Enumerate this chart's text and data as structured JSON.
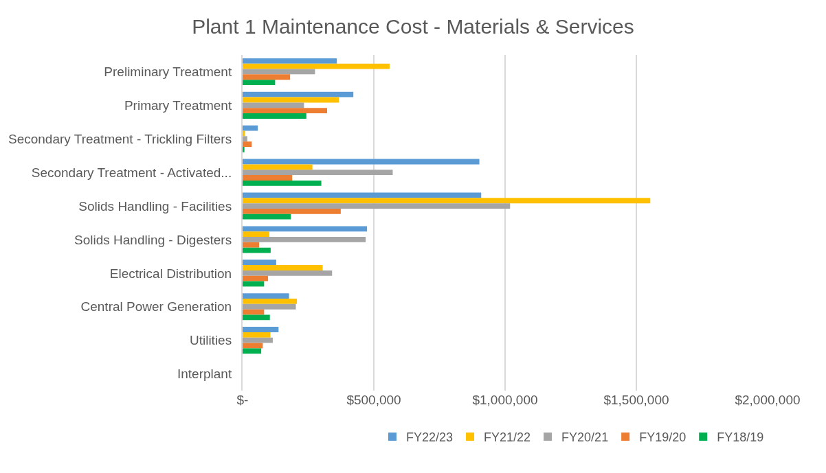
{
  "chart_data": {
    "type": "bar",
    "orientation": "horizontal",
    "title": "Plant 1 Maintenance Cost - Materials & Services",
    "categories": [
      "Preliminary Treatment",
      "Primary Treatment",
      "Secondary Treatment - Trickling Filters",
      "Secondary Treatment - Activated...",
      "Solids Handling - Facilities",
      "Solids Handling - Digesters",
      "Electrical Distribution",
      "Central Power Generation",
      "Utilities",
      "Interplant"
    ],
    "series": [
      {
        "name": "FY22/23",
        "color": "#5b9bd5",
        "values": [
          359000,
          422000,
          58000,
          902000,
          909000,
          474000,
          128000,
          177000,
          137000,
          0
        ]
      },
      {
        "name": "FY21/22",
        "color": "#ffc000",
        "values": [
          560000,
          367000,
          9000,
          266000,
          1553000,
          102000,
          305000,
          207000,
          106000,
          0
        ]
      },
      {
        "name": "FY20/21",
        "color": "#a5a5a5",
        "values": [
          276000,
          234000,
          18000,
          572000,
          1019000,
          469000,
          341000,
          203000,
          115000,
          0
        ]
      },
      {
        "name": "FY19/20",
        "color": "#ed7d31",
        "values": [
          181000,
          322000,
          35000,
          189000,
          374000,
          63000,
          97000,
          82000,
          77000,
          0
        ]
      },
      {
        "name": "FY18/19",
        "color": "#00b050",
        "values": [
          124000,
          243000,
          7000,
          300000,
          184000,
          107000,
          82000,
          104000,
          71000,
          0
        ]
      }
    ],
    "xlim": [
      0,
      2000000
    ],
    "xticks": [
      {
        "value": 0,
        "label": "$-"
      },
      {
        "value": 500000,
        "label": "$500,000"
      },
      {
        "value": 1000000,
        "label": "$1,000,000"
      },
      {
        "value": 1500000,
        "label": "$1,500,000"
      },
      {
        "value": 2000000,
        "label": "$2,000,000"
      }
    ],
    "grid": "x",
    "legend": "bottom"
  }
}
